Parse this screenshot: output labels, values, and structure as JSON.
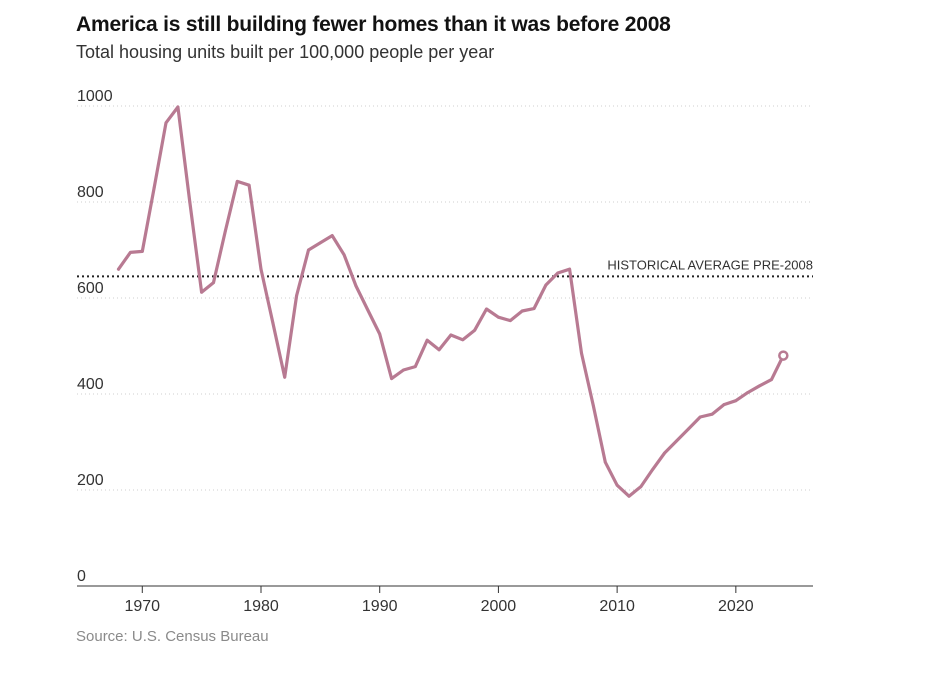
{
  "title": "America is still building fewer homes than it was before 2008",
  "subtitle": "Total housing units built per 100,000 people per year",
  "source": "Source: U.S. Census Bureau",
  "chart_data": {
    "type": "line",
    "title": "America is still building fewer homes than it was before 2008",
    "subtitle": "Total housing units built per 100,000 people per year",
    "xlabel": "",
    "ylabel": "",
    "xlim": [
      1964.5,
      2026.5
    ],
    "ylim": [
      0,
      1000
    ],
    "y_ticks": [
      0,
      200,
      400,
      600,
      800,
      1000
    ],
    "y_tick_labels": [
      "0",
      "200",
      "400",
      "600",
      "800",
      "1000"
    ],
    "x_ticks": [
      1970,
      1980,
      1990,
      2000,
      2010,
      2020
    ],
    "x_tick_labels": [
      "1970",
      "1980",
      "1990",
      "2000",
      "2010",
      "2020"
    ],
    "grid": "horizontal dotted",
    "line_color": "#b87a92",
    "reference_line": {
      "label": "HISTORICAL AVERAGE PRE-2008",
      "value": 645
    },
    "series": [
      {
        "name": "Housing units built per 100,000 people",
        "x": [
          1968,
          1969,
          1970,
          1971,
          1972,
          1973,
          1974,
          1975,
          1976,
          1977,
          1978,
          1979,
          1980,
          1981,
          1982,
          1983,
          1984,
          1985,
          1986,
          1987,
          1988,
          1989,
          1990,
          1991,
          1992,
          1993,
          1994,
          1995,
          1996,
          1997,
          1998,
          1999,
          2000,
          2001,
          2002,
          2003,
          2004,
          2005,
          2006,
          2007,
          2008,
          2009,
          2010,
          2011,
          2012,
          2013,
          2014,
          2015,
          2016,
          2017,
          2018,
          2019,
          2020,
          2021,
          2022,
          2023,
          2024
        ],
        "values": [
          660,
          695,
          697,
          830,
          965,
          998,
          800,
          612,
          632,
          740,
          843,
          835,
          660,
          548,
          435,
          605,
          700,
          715,
          730,
          690,
          625,
          575,
          525,
          432,
          450,
          457,
          512,
          492,
          523,
          513,
          533,
          577,
          560,
          553,
          573,
          578,
          627,
          652,
          660,
          485,
          375,
          258,
          210,
          187,
          207,
          243,
          277,
          302,
          327,
          352,
          358,
          378,
          386,
          403,
          417,
          430,
          480
        ]
      }
    ],
    "end_marker": {
      "x": 2024,
      "value": 480
    }
  }
}
